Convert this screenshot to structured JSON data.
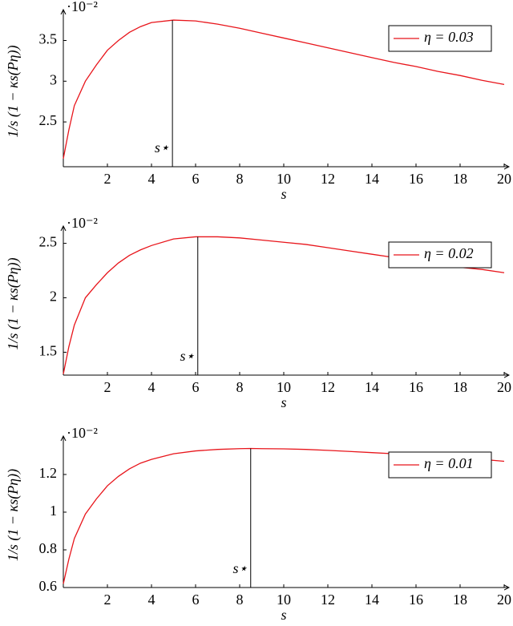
{
  "chart_data": [
    {
      "type": "line",
      "y_label": "1/s (1 − κs(Pη))",
      "x_label": "s",
      "y_scale_label": "·10⁻²",
      "x": [
        0,
        0.25,
        0.5,
        1,
        1.5,
        2,
        2.5,
        3,
        3.5,
        4,
        5,
        6,
        7,
        8,
        9,
        10,
        11,
        12,
        13,
        14,
        15,
        16,
        17,
        18,
        19,
        20
      ],
      "series": [
        {
          "name": "η = 0.03",
          "color": "#e8151b",
          "values": [
            2.05,
            2.4,
            2.7,
            3.0,
            3.2,
            3.38,
            3.5,
            3.6,
            3.67,
            3.72,
            3.75,
            3.74,
            3.7,
            3.65,
            3.59,
            3.53,
            3.47,
            3.41,
            3.35,
            3.29,
            3.23,
            3.18,
            3.12,
            3.07,
            3.01,
            2.96
          ]
        }
      ],
      "xlim": [
        0,
        20
      ],
      "xticks": [
        2,
        4,
        6,
        8,
        10,
        12,
        14,
        16,
        18,
        20
      ],
      "ylim": [
        1.95,
        3.8
      ],
      "yticks": [
        2.5,
        3,
        3.5
      ],
      "annotations": [
        {
          "text": "s⋆",
          "x": 4.95
        }
      ],
      "legend": "top-right"
    },
    {
      "type": "line",
      "y_label": "1/s (1 − κs(Pη))",
      "x_label": "s",
      "y_scale_label": "·10⁻²",
      "x": [
        0,
        0.25,
        0.5,
        1,
        1.5,
        2,
        2.5,
        3,
        3.5,
        4,
        5,
        6,
        7,
        8,
        9,
        10,
        11,
        12,
        13,
        14,
        15,
        16,
        17,
        18,
        19,
        20
      ],
      "series": [
        {
          "name": "η = 0.02",
          "color": "#e8151b",
          "values": [
            1.3,
            1.55,
            1.75,
            2.0,
            2.12,
            2.23,
            2.32,
            2.39,
            2.44,
            2.48,
            2.54,
            2.56,
            2.56,
            2.55,
            2.53,
            2.51,
            2.49,
            2.46,
            2.43,
            2.4,
            2.37,
            2.34,
            2.31,
            2.28,
            2.26,
            2.23
          ]
        }
      ],
      "xlim": [
        0,
        20
      ],
      "xticks": [
        2,
        4,
        6,
        8,
        10,
        12,
        14,
        16,
        18,
        20
      ],
      "ylim": [
        1.29,
        2.6
      ],
      "yticks": [
        1.5,
        2,
        2.5
      ],
      "annotations": [
        {
          "text": "s⋆",
          "x": 6.1
        }
      ],
      "legend": "top-right"
    },
    {
      "type": "line",
      "y_label": "1/s (1 − κs(Pη))",
      "x_label": "s",
      "y_scale_label": "·10⁻²",
      "x": [
        0,
        0.25,
        0.5,
        1,
        1.5,
        2,
        2.5,
        3,
        3.5,
        4,
        5,
        6,
        7,
        8,
        8.5,
        9,
        10,
        11,
        12,
        13,
        14,
        15,
        16,
        17,
        18,
        19,
        20
      ],
      "series": [
        {
          "name": "η = 0.01",
          "color": "#e8151b",
          "values": [
            0.62,
            0.75,
            0.86,
            0.99,
            1.07,
            1.14,
            1.19,
            1.23,
            1.26,
            1.28,
            1.31,
            1.325,
            1.333,
            1.337,
            1.338,
            1.337,
            1.336,
            1.333,
            1.328,
            1.322,
            1.316,
            1.31,
            1.302,
            1.295,
            1.287,
            1.28,
            1.27
          ]
        }
      ],
      "xlim": [
        0,
        20
      ],
      "xticks": [
        2,
        4,
        6,
        8,
        10,
        12,
        14,
        16,
        18,
        20
      ],
      "ylim": [
        0.6,
        1.37
      ],
      "yticks": [
        0.6,
        0.8,
        1,
        1.2
      ],
      "annotations": [
        {
          "text": "s⋆",
          "x": 8.5
        }
      ],
      "legend": "top-right"
    }
  ]
}
